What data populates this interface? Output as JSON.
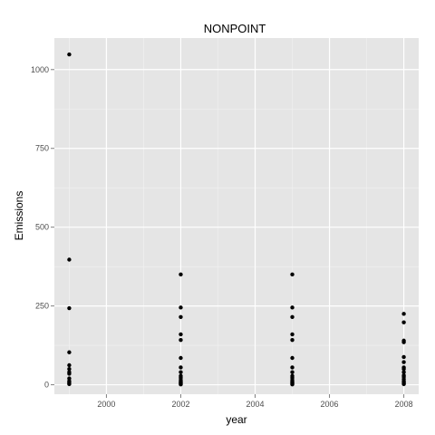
{
  "chart_data": {
    "type": "scatter",
    "title": "NONPOINT",
    "xlabel": "year",
    "ylabel": "Emissions",
    "xlim": [
      1998.6,
      2008.4
    ],
    "ylim": [
      -30,
      1100
    ],
    "x_ticks": [
      2000,
      2002,
      2004,
      2006,
      2008
    ],
    "y_ticks": [
      0,
      250,
      500,
      750,
      1000
    ],
    "grid": true,
    "colors": {
      "panel": "#e5e5e5",
      "grid_major": "#ffffff",
      "grid_minor": "#f2f2f2",
      "point": "#000000",
      "tick_text": "#4d4d4d"
    },
    "series": [
      {
        "x": [
          1999,
          1999,
          1999,
          1999,
          1999,
          1999,
          1999,
          1999,
          1999,
          1999,
          1999,
          1999,
          1999,
          2002,
          2002,
          2002,
          2002,
          2002,
          2002,
          2002,
          2002,
          2002,
          2002,
          2002,
          2002,
          2002,
          2002,
          2002,
          2002,
          2005,
          2005,
          2005,
          2005,
          2005,
          2005,
          2005,
          2005,
          2005,
          2005,
          2005,
          2005,
          2005,
          2005,
          2005,
          2005,
          2008,
          2008,
          2008,
          2008,
          2008,
          2008,
          2008,
          2008,
          2008,
          2008,
          2008,
          2008,
          2008,
          2008,
          2008,
          2008
        ],
        "y": [
          1048,
          397,
          243,
          103,
          62,
          50,
          40,
          35,
          20,
          12,
          8,
          5,
          2,
          350,
          245,
          215,
          160,
          142,
          85,
          55,
          40,
          28,
          22,
          15,
          10,
          8,
          5,
          3,
          1,
          350,
          245,
          215,
          160,
          142,
          85,
          55,
          40,
          28,
          22,
          15,
          10,
          8,
          5,
          3,
          1,
          225,
          198,
          140,
          135,
          88,
          72,
          55,
          50,
          40,
          30,
          25,
          18,
          12,
          8,
          5,
          2
        ]
      }
    ]
  }
}
